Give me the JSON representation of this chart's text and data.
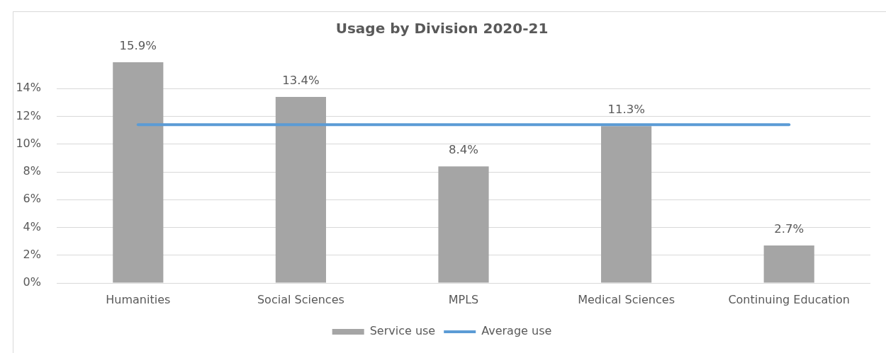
{
  "chart_data": {
    "type": "bar",
    "title": "Usage by Division 2020-21",
    "categories": [
      "Humanities",
      "Social Sciences",
      "MPLS",
      "Medical Sciences",
      "Continuing Education"
    ],
    "series": [
      {
        "name": "Service use",
        "color": "#a5a5a5",
        "values": [
          15.9,
          13.4,
          8.4,
          11.3,
          2.7
        ],
        "value_labels": [
          "15.9%",
          "13.4%",
          "8.4%",
          "11.3%",
          "2.7%"
        ]
      },
      {
        "name": "Average use",
        "type": "line",
        "color": "#5b9bd5",
        "values": [
          11.4,
          11.4,
          11.4,
          11.4,
          11.4
        ]
      }
    ],
    "ylim": [
      0,
      16
    ],
    "yticks": [
      {
        "value": 0,
        "label": "0%"
      },
      {
        "value": 2,
        "label": "2%"
      },
      {
        "value": 4,
        "label": "4%"
      },
      {
        "value": 6,
        "label": "6%"
      },
      {
        "value": 8,
        "label": "8%"
      },
      {
        "value": 10,
        "label": "10%"
      },
      {
        "value": 12,
        "label": "12%"
      },
      {
        "value": 14,
        "label": "14%"
      }
    ],
    "grid": "y",
    "legend": "bottom"
  }
}
